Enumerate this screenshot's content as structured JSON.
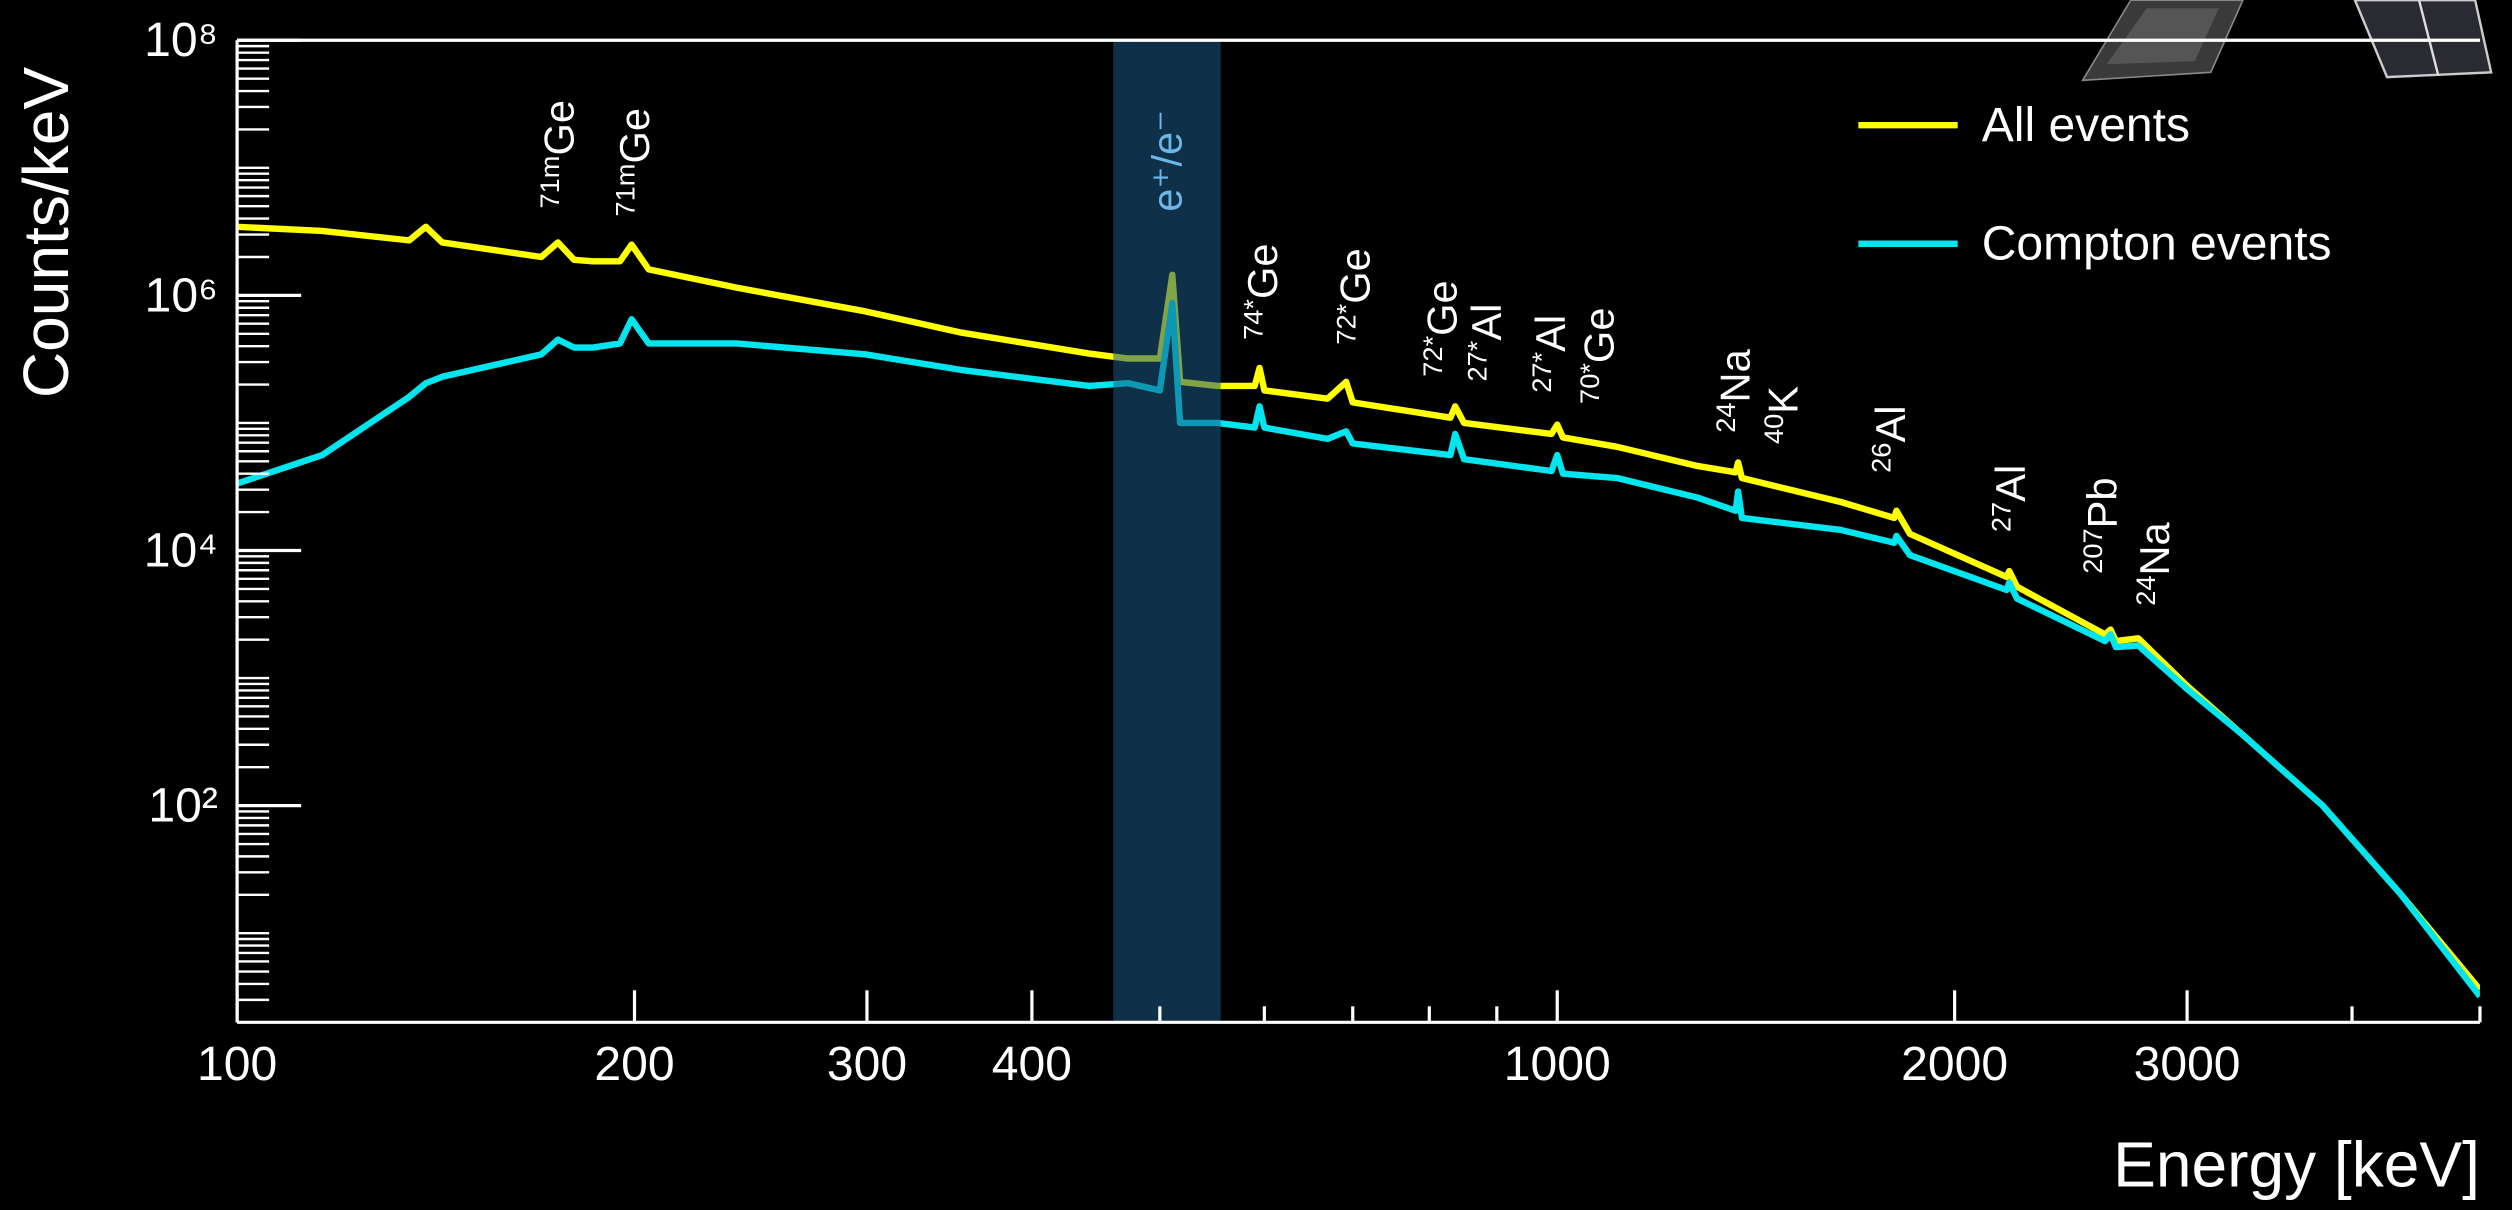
{
  "chart_data": {
    "type": "line",
    "x_label": "Energy [keV]",
    "y_label": "Counts/keV",
    "log_x": true,
    "log_y": true,
    "xlim": [
      100,
      5000
    ],
    "ylim": [
      2,
      100000000
    ],
    "xticks": [
      100,
      200,
      300,
      400,
      1000,
      2000,
      3000
    ],
    "xminorticks": [
      500,
      600,
      700,
      800,
      900,
      4000,
      5000
    ],
    "yticks": [
      {
        "value": 100,
        "label": "10²"
      },
      {
        "value": 10000,
        "label": "10⁴"
      },
      {
        "value": 1000000,
        "label": "10⁶"
      },
      {
        "value": 100000000,
        "label": "10⁸"
      }
    ],
    "yminorticks": [
      3,
      4,
      5,
      6,
      7,
      8,
      9,
      10,
      20,
      30,
      40,
      50,
      60,
      70,
      80,
      90,
      200,
      300,
      400,
      500,
      600,
      700,
      800,
      900,
      1000,
      2000,
      3000,
      4000,
      5000,
      6000,
      7000,
      8000,
      9000,
      20000,
      30000,
      40000,
      50000,
      60000,
      70000,
      80000,
      90000,
      100000,
      200000,
      300000,
      400000,
      500000,
      600000,
      700000,
      800000,
      900000,
      2000000,
      3000000,
      4000000,
      5000000,
      6000000,
      7000000,
      8000000,
      9000000,
      10000000,
      20000000,
      30000000,
      40000000,
      50000000,
      60000000,
      70000000,
      80000000,
      90000000
    ],
    "legend": "top-right",
    "x": [
      100,
      116,
      135,
      139,
      143,
      170,
      175,
      180,
      186,
      195,
      199,
      205,
      239,
      299,
      354,
      442,
      473,
      500,
      511,
      518,
      553,
      590,
      595,
      600,
      670,
      692,
      700,
      830,
      837,
      850,
      990,
      1000,
      1010,
      1110,
      1277,
      1365,
      1371,
      1380,
      1640,
      1800,
      1807,
      1850,
      2190,
      2200,
      2230,
      2600,
      2625,
      2650,
      2755,
      3000,
      3300,
      3800,
      4350,
      5000
    ],
    "series": [
      {
        "name": "All events",
        "color": "#ffff00",
        "values": [
          3450000,
          3200000,
          2700000,
          3450000,
          2600000,
          2000000,
          2600000,
          1900000,
          1850000,
          1850000,
          2500000,
          1600000,
          1150000,
          750000,
          510000,
          350000,
          320000,
          320000,
          1450000,
          210000,
          195000,
          195000,
          270000,
          180000,
          155000,
          210000,
          145000,
          110000,
          135000,
          100000,
          82000,
          97000,
          77000,
          65000,
          46000,
          41000,
          49000,
          37000,
          24000,
          18000,
          20500,
          13500,
          6200,
          6900,
          5200,
          2200,
          2400,
          1950,
          2050,
          870,
          365,
          100,
          20.5,
          3.6
        ]
      },
      {
        "name": "Compton events",
        "color": "#00e5ee",
        "values": [
          33500,
          56000,
          160000,
          205000,
          230000,
          345000,
          450000,
          390000,
          390000,
          420000,
          650000,
          420000,
          420000,
          345000,
          260000,
          195000,
          205000,
          180000,
          870000,
          100000,
          100000,
          92000,
          135000,
          92000,
          75000,
          86000,
          69000,
          56000,
          82000,
          52000,
          42000,
          56000,
          40000,
          37000,
          26000,
          20500,
          29000,
          18000,
          14500,
          11500,
          13000,
          9200,
          4900,
          5600,
          4200,
          1950,
          2200,
          1750,
          1800,
          820,
          365,
          100,
          20.5,
          3.2
        ]
      }
    ],
    "band": {
      "label": "e⁺/e⁻",
      "xrange": [
        461,
        556
      ],
      "color": "#1a5a85",
      "label_color": "#6fb6e6"
    },
    "annotations": [
      [
        {
          "sup": "71m",
          "text": "Ge"
        }
      ],
      [
        {
          "sup": "71m",
          "text": "Ge"
        }
      ],
      [
        {
          "sup": "74*",
          "text": "Ge"
        }
      ],
      [
        {
          "sup": "72*",
          "text": "Ge"
        }
      ],
      [
        {
          "sup": "72*",
          "text": "Ge"
        },
        {
          "sup": "27*",
          "text": "Al"
        }
      ],
      [
        {
          "sup": "27*",
          "text": "Al"
        },
        {
          "sup": "70*",
          "text": "Ge"
        }
      ],
      [
        {
          "sup": "24",
          "text": "Na"
        },
        {
          "sup": "40",
          "text": "K"
        }
      ],
      [
        {
          "sup": "26",
          "text": "Al"
        }
      ],
      [
        {
          "sup": "27",
          "text": "Al"
        }
      ],
      [
        {
          "sup": "207",
          "text": "Pb"
        },
        {
          "sup": "24",
          "text": "Na"
        }
      ]
    ]
  }
}
